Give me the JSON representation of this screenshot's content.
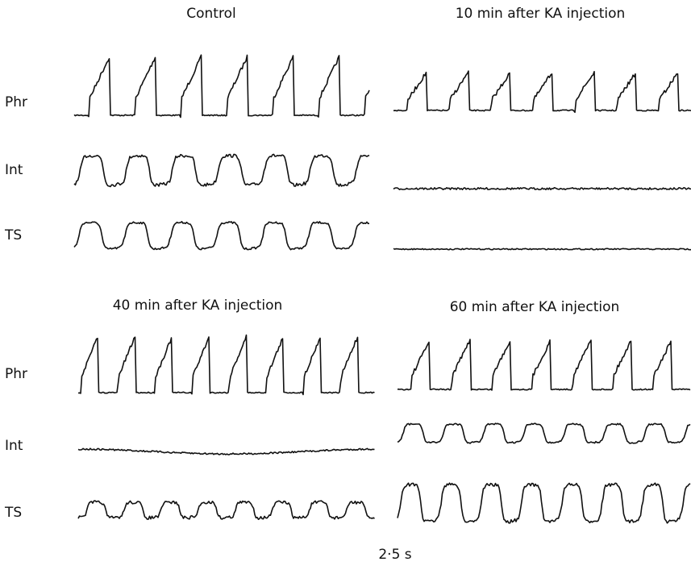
{
  "panels": [
    {
      "title": "Control",
      "row_labels": [
        "Phr",
        "Int",
        "TS"
      ]
    },
    {
      "title": "10 min after KA injection"
    },
    {
      "title": "40 min after KA injection",
      "row_labels": [
        "Phr",
        "Int",
        "TS"
      ]
    },
    {
      "title": "60 min after KA injection"
    }
  ],
  "scale_bar": "2·5 s"
}
